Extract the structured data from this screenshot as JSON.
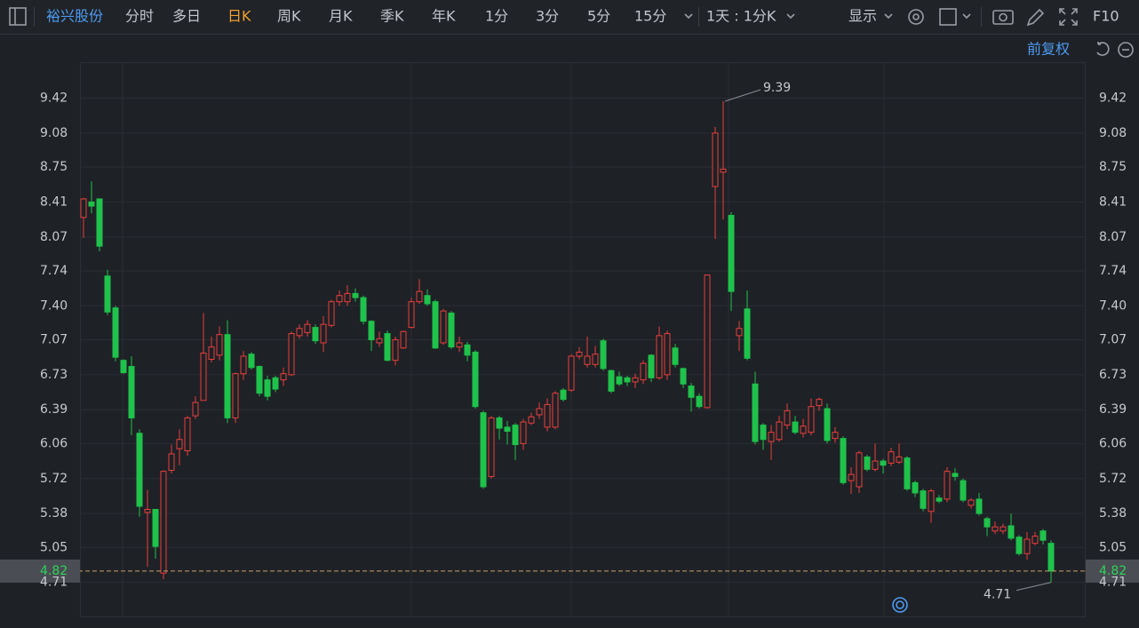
{
  "toolbar": {
    "stock": "裕兴股份",
    "tabs": [
      {
        "label": "分时",
        "active": false
      },
      {
        "label": "多日",
        "active": false
      },
      {
        "label": "日K",
        "active": true
      },
      {
        "label": "周K",
        "active": false
      },
      {
        "label": "月K",
        "active": false
      },
      {
        "label": "季K",
        "active": false
      },
      {
        "label": "年K",
        "active": false
      },
      {
        "label": "1分",
        "active": false
      },
      {
        "label": "3分",
        "active": false
      },
      {
        "label": "5分",
        "active": false
      },
      {
        "label": "15分",
        "active": false
      }
    ],
    "period": "1天 : 1分K",
    "display": "显示",
    "f10": "F10",
    "adjust": "前复权"
  },
  "chart_data": {
    "type": "candlestick",
    "up_color": "#e8403c",
    "down_color": "#1fc24b",
    "grid": true,
    "open": [
      8.26,
      8.41,
      8.44,
      7.69,
      7.38,
      6.87,
      6.81,
      6.16,
      5.39,
      5.42,
      4.8,
      5.8,
      6.01,
      5.99,
      6.33,
      6.48,
      6.88,
      6.92,
      7.12,
      6.31,
      6.74,
      6.93,
      6.81,
      6.68,
      6.7,
      6.68,
      6.73,
      7.11,
      7.14,
      7.19,
      7.04,
      7.21,
      7.44,
      7.44,
      7.52,
      7.48,
      7.25,
      7.04,
      7.13,
      6.87,
      6.99,
      7.19,
      7.44,
      7.5,
      7.44,
      7.04,
      7.33,
      7.0,
      7.02,
      6.95,
      6.36,
      5.74,
      6.31,
      6.22,
      6.24,
      6.06,
      6.26,
      6.34,
      6.22,
      6.22,
      6.58,
      6.58,
      6.91,
      6.83,
      6.83,
      7.06,
      6.77,
      6.71,
      6.7,
      6.66,
      6.68,
      6.92,
      6.7,
      6.73,
      6.99,
      6.79,
      6.62,
      6.52,
      6.41,
      8.56,
      8.7,
      8.28,
      7.11,
      7.37,
      6.64,
      6.24,
      6.08,
      6.1,
      6.24,
      6.27,
      6.16,
      6.17,
      6.43,
      6.4,
      6.11,
      6.11,
      5.7,
      5.64,
      5.93,
      5.81,
      5.89,
      5.87,
      5.88,
      5.92,
      5.68,
      5.6,
      5.4,
      5.53,
      5.52,
      5.77,
      5.7,
      5.46,
      5.52,
      5.33,
      5.21,
      5.21,
      5.26,
      5.15,
      4.99,
      5.09,
      5.21,
      5.09
    ],
    "high": [
      8.45,
      8.61,
      8.44,
      7.75,
      7.4,
      6.88,
      6.91,
      6.2,
      5.61,
      5.42,
      5.8,
      6.05,
      6.2,
      6.33,
      6.52,
      7.33,
      7.1,
      7.2,
      7.26,
      6.75,
      6.96,
      6.95,
      6.82,
      6.72,
      6.72,
      6.8,
      7.15,
      7.22,
      7.26,
      7.22,
      7.3,
      7.46,
      7.55,
      7.6,
      7.57,
      7.5,
      7.26,
      7.15,
      7.16,
      7.1,
      7.16,
      7.48,
      7.66,
      7.56,
      7.46,
      7.37,
      7.35,
      7.1,
      7.05,
      6.97,
      6.38,
      6.33,
      6.33,
      6.28,
      6.26,
      6.3,
      6.36,
      6.46,
      6.5,
      6.57,
      6.6,
      6.93,
      7.0,
      7.1,
      7.01,
      7.08,
      6.78,
      6.76,
      6.72,
      6.74,
      6.87,
      6.93,
      7.2,
      7.16,
      7.03,
      6.8,
      6.65,
      6.55,
      7.7,
      9.14,
      9.39,
      8.31,
      7.25,
      7.55,
      6.76,
      6.26,
      6.24,
      6.33,
      6.45,
      6.33,
      6.3,
      6.5,
      6.51,
      6.45,
      6.22,
      6.13,
      5.83,
      5.99,
      5.95,
      6.06,
      5.91,
      6.02,
      6.06,
      5.94,
      5.7,
      5.62,
      5.62,
      5.56,
      5.83,
      5.82,
      5.72,
      5.53,
      5.58,
      5.35,
      5.3,
      5.28,
      5.38,
      5.17,
      5.2,
      5.2,
      5.23,
      5.12
    ],
    "low": [
      8.06,
      8.3,
      7.93,
      7.31,
      6.86,
      6.74,
      6.14,
      5.35,
      4.86,
      4.94,
      4.74,
      5.77,
      5.85,
      5.94,
      6.3,
      6.48,
      6.85,
      6.87,
      6.26,
      6.26,
      6.68,
      6.78,
      6.52,
      6.48,
      6.56,
      6.62,
      6.72,
      7.08,
      7.1,
      7.03,
      6.95,
      7.19,
      7.4,
      7.4,
      7.44,
      7.22,
      6.96,
      7.0,
      6.86,
      6.82,
      6.98,
      7.18,
      7.42,
      7.4,
      6.98,
      7.02,
      6.98,
      6.95,
      6.86,
      6.4,
      5.62,
      5.72,
      6.1,
      6.05,
      5.9,
      6.0,
      6.24,
      6.3,
      6.18,
      6.2,
      6.47,
      6.56,
      6.88,
      6.8,
      6.8,
      6.77,
      6.55,
      6.62,
      6.62,
      6.6,
      6.64,
      6.66,
      6.68,
      6.68,
      6.8,
      6.6,
      6.37,
      6.4,
      6.4,
      8.05,
      8.24,
      7.35,
      6.96,
      6.87,
      6.05,
      6.0,
      5.9,
      6.08,
      6.2,
      6.15,
      6.12,
      6.14,
      6.38,
      6.06,
      6.07,
      5.66,
      5.57,
      5.58,
      5.79,
      5.79,
      5.77,
      5.84,
      5.86,
      5.6,
      5.54,
      5.4,
      5.29,
      5.48,
      5.49,
      5.7,
      5.49,
      5.43,
      5.36,
      5.16,
      5.18,
      5.18,
      5.12,
      4.97,
      4.93,
      5.07,
      5.08,
      4.71
    ],
    "close": [
      8.44,
      8.37,
      7.98,
      7.34,
      6.9,
      6.75,
      6.31,
      5.45,
      5.42,
      5.06,
      5.79,
      5.96,
      6.1,
      6.31,
      6.46,
      6.94,
      7.0,
      7.12,
      6.31,
      6.74,
      6.91,
      6.8,
      6.55,
      6.52,
      6.59,
      6.74,
      7.13,
      7.18,
      7.22,
      7.06,
      7.22,
      7.44,
      7.5,
      7.52,
      7.48,
      7.25,
      7.07,
      7.08,
      6.87,
      7.07,
      7.15,
      7.44,
      7.54,
      7.42,
      6.99,
      7.35,
      7.0,
      7.04,
      6.92,
      6.42,
      5.64,
      6.31,
      6.21,
      6.18,
      6.05,
      6.27,
      6.32,
      6.4,
      6.44,
      6.55,
      6.49,
      6.91,
      6.95,
      6.91,
      6.93,
      6.79,
      6.57,
      6.64,
      6.66,
      6.7,
      6.84,
      6.7,
      7.11,
      7.13,
      6.83,
      6.64,
      6.51,
      6.42,
      7.7,
      9.08,
      8.73,
      7.54,
      7.18,
      6.89,
      6.08,
      6.1,
      6.17,
      6.27,
      6.38,
      6.17,
      6.23,
      6.42,
      6.49,
      6.09,
      6.17,
      5.68,
      5.76,
      5.97,
      5.81,
      5.89,
      5.85,
      5.98,
      5.93,
      5.62,
      5.58,
      5.43,
      5.6,
      5.5,
      5.79,
      5.74,
      5.51,
      5.51,
      5.38,
      5.25,
      5.25,
      5.25,
      5.14,
      4.99,
      5.13,
      5.16,
      5.12,
      4.82
    ],
    "ylim": [
      4.37,
      9.77
    ],
    "yticks": [
      9.42,
      9.08,
      8.75,
      8.41,
      8.07,
      7.74,
      {
        "value": 7.4,
        "label": "7.40"
      },
      7.07,
      6.73,
      6.39,
      6.06,
      5.72,
      5.38,
      5.05,
      4.71
    ],
    "high_label": 9.39,
    "low_label": 4.71,
    "last_price": 4.82
  }
}
